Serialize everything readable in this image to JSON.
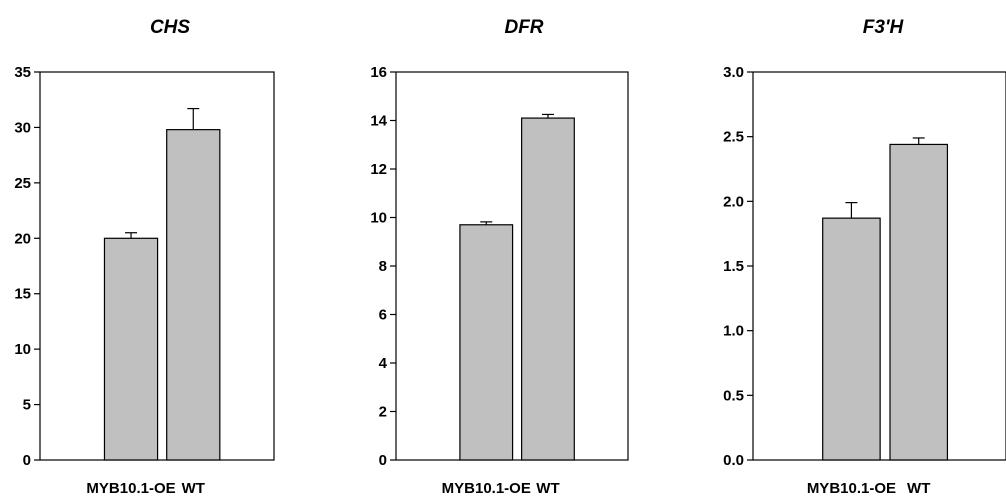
{
  "chart_data": [
    {
      "type": "bar",
      "title": "CHS",
      "categories": [
        "MYB10.1-OE",
        "WT"
      ],
      "values": [
        20.0,
        29.8
      ],
      "errors": [
        0.5,
        1.9
      ],
      "ylim": [
        0,
        35
      ],
      "yticks": [
        "0",
        "5",
        "10",
        "15",
        "20",
        "25",
        "30",
        "35"
      ],
      "xlabel": "",
      "ylabel": "",
      "grid": false,
      "bar_color": "#c0c0c0"
    },
    {
      "type": "bar",
      "title": "DFR",
      "categories": [
        "MYB10.1-OE",
        "WT"
      ],
      "values": [
        9.7,
        14.1
      ],
      "errors": [
        0.12,
        0.15
      ],
      "ylim": [
        0,
        16
      ],
      "yticks": [
        "0",
        "2",
        "4",
        "6",
        "8",
        "10",
        "12",
        "14",
        "16"
      ],
      "xlabel": "",
      "ylabel": "",
      "grid": false,
      "bar_color": "#c0c0c0"
    },
    {
      "type": "bar",
      "title": "F3'H",
      "categories": [
        "MYB10.1-OE",
        "WT"
      ],
      "values": [
        1.87,
        2.44
      ],
      "errors": [
        0.12,
        0.05
      ],
      "ylim": [
        0,
        3.0
      ],
      "yticks": [
        "0.0",
        "0.5",
        "1.0",
        "1.5",
        "2.0",
        "2.5",
        "3.0"
      ],
      "xlabel": "",
      "ylabel": "",
      "grid": false,
      "bar_color": "#c0c0c0"
    }
  ]
}
